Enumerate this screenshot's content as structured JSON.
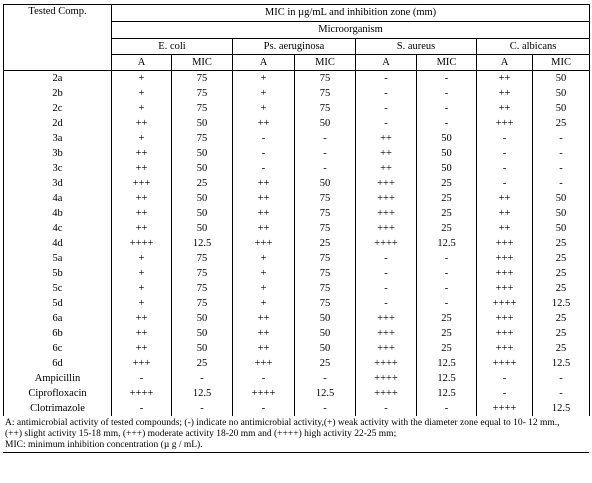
{
  "table": {
    "header": {
      "tested_comp": "Tested Comp.",
      "mic_title": "MIC in µg/mL and inhibition zone (mm)",
      "microorganism": "Microorganism",
      "organisms": [
        "E. coli",
        "Ps. aeruginosa",
        "S. aureus",
        "C. albicans"
      ],
      "col_a": "A",
      "col_mic": "MIC"
    },
    "rows": [
      {
        "comp": "2a",
        "cells": [
          "+",
          "75",
          "+",
          "75",
          "-",
          "-",
          "++",
          "50"
        ]
      },
      {
        "comp": "2b",
        "cells": [
          "+",
          "75",
          "+",
          "75",
          "-",
          "-",
          "++",
          "50"
        ]
      },
      {
        "comp": "2c",
        "cells": [
          "+",
          "75",
          "+",
          "75",
          "-",
          "-",
          "++",
          "50"
        ]
      },
      {
        "comp": "2d",
        "cells": [
          "++",
          "50",
          "++",
          "50",
          "-",
          "-",
          "+++",
          "25"
        ]
      },
      {
        "comp": "3a",
        "cells": [
          "+",
          "75",
          "-",
          "-",
          "++",
          "50",
          "-",
          "-"
        ]
      },
      {
        "comp": "3b",
        "cells": [
          "++",
          "50",
          "-",
          "-",
          "++",
          "50",
          "-",
          "-"
        ]
      },
      {
        "comp": "3c",
        "cells": [
          "++",
          "50",
          "-",
          "-",
          "++",
          "50",
          "-",
          "-"
        ]
      },
      {
        "comp": "3d",
        "cells": [
          "+++",
          "25",
          "++",
          "50",
          "+++",
          "25",
          "-",
          "-"
        ]
      },
      {
        "comp": "4a",
        "cells": [
          "++",
          "50",
          "++",
          "75",
          "+++",
          "25",
          "++",
          "50"
        ]
      },
      {
        "comp": "4b",
        "cells": [
          "++",
          "50",
          "++",
          "75",
          "+++",
          "25",
          "++",
          "50"
        ]
      },
      {
        "comp": "4c",
        "cells": [
          "++",
          "50",
          "++",
          "75",
          "+++",
          "25",
          "++",
          "50"
        ]
      },
      {
        "comp": "4d",
        "cells": [
          "++++",
          "12.5",
          "+++",
          "25",
          "++++",
          "12.5",
          "+++",
          "25"
        ]
      },
      {
        "comp": "5a",
        "cells": [
          "+",
          "75",
          "+",
          "75",
          "-",
          "-",
          "+++",
          "25"
        ]
      },
      {
        "comp": "5b",
        "cells": [
          "+",
          "75",
          "+",
          "75",
          "-",
          "-",
          "+++",
          "25"
        ]
      },
      {
        "comp": "5c",
        "cells": [
          "+",
          "75",
          "+",
          "75",
          "-",
          "-",
          "+++",
          "25"
        ]
      },
      {
        "comp": "5d",
        "cells": [
          "+",
          "75",
          "+",
          "75",
          "-",
          "-",
          "++++",
          "12.5"
        ]
      },
      {
        "comp": "6a",
        "cells": [
          "++",
          "50",
          "++",
          "50",
          "+++",
          "25",
          "+++",
          "25"
        ]
      },
      {
        "comp": "6b",
        "cells": [
          "++",
          "50",
          "++",
          "50",
          "+++",
          "25",
          "+++",
          "25"
        ]
      },
      {
        "comp": "6c",
        "cells": [
          "++",
          "50",
          "++",
          "50",
          "+++",
          "25",
          "+++",
          "25"
        ]
      },
      {
        "comp": "6d",
        "cells": [
          "+++",
          "25",
          "+++",
          "25",
          "++++",
          "12.5",
          "++++",
          "12.5"
        ]
      },
      {
        "comp": "Ampicillin",
        "cells": [
          "-",
          "-",
          "-",
          "-",
          "++++",
          "12.5",
          "-",
          "-"
        ]
      },
      {
        "comp": "Ciprofloxacin",
        "cells": [
          "++++",
          "12.5",
          "++++",
          "12.5",
          "++++",
          "12.5",
          "-",
          "-"
        ]
      },
      {
        "comp": "Clotrimazole",
        "cells": [
          "-",
          "-",
          "-",
          "-",
          "-",
          "-",
          "++++",
          "12.5"
        ]
      }
    ]
  },
  "footnote": {
    "line1": "A: antimicrobial activity of tested compounds; (-) indicate no antimicrobial activity,(+) weak activity with the diameter zone equal to 10- 12 mm.,",
    "line2": "(++) slight activity 15-18 mm, (+++) moderate activity 18-20 mm and (++++) high activity 22-25 mm;",
    "line3": "MIC: minimum inhibition concentration (µ g / mL)."
  }
}
